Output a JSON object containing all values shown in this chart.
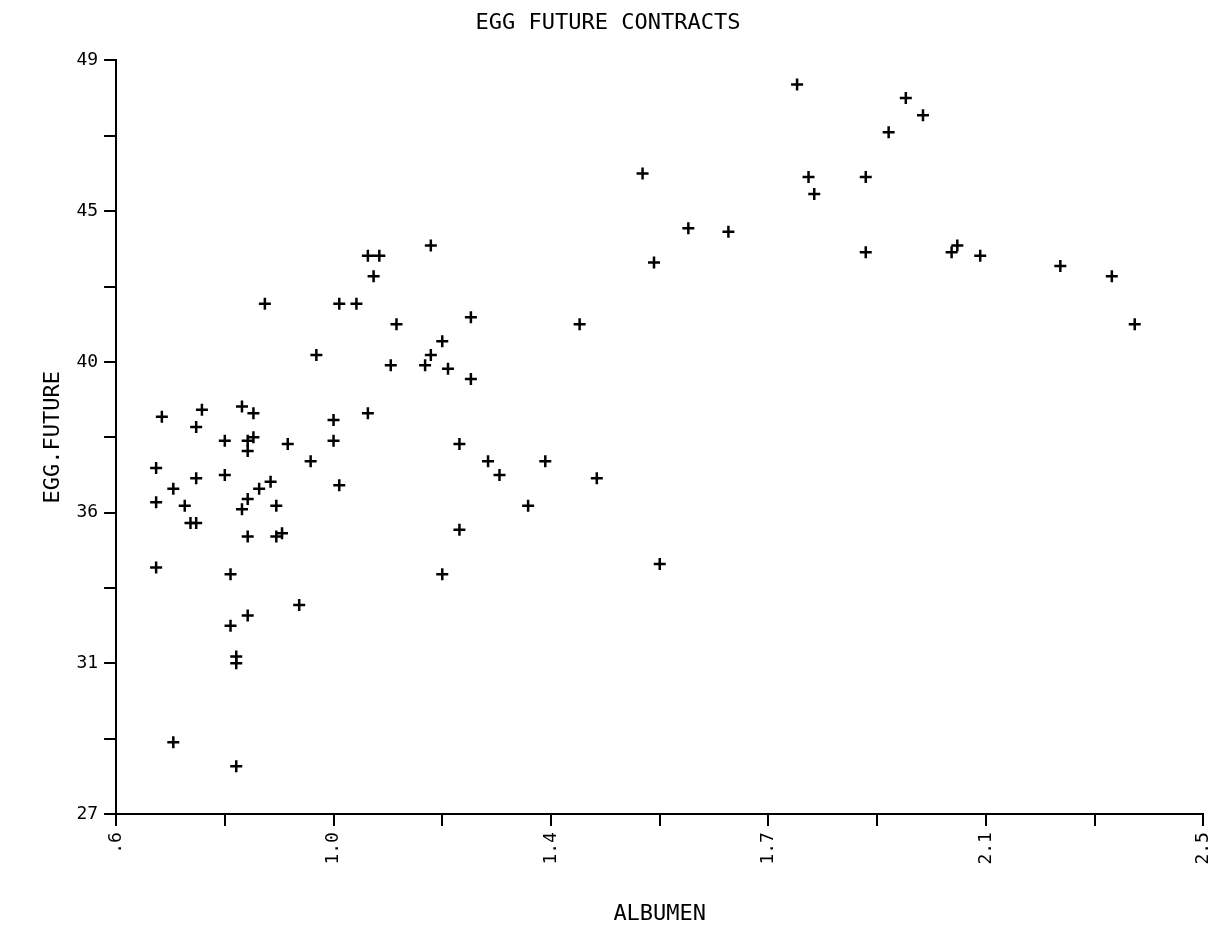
{
  "chart_data": {
    "type": "scatter",
    "title": "EGG FUTURE CONTRACTS",
    "xlabel": "ALBUMEN",
    "ylabel": "EGG.FUTURE",
    "marker": "cross",
    "grid": false,
    "legend": false,
    "xlim": [
      0.6,
      2.5
    ],
    "xticks": [
      {
        "value": 0.6,
        "label": ".6"
      },
      {
        "value": 0.79,
        "label": null
      },
      {
        "value": 0.98,
        "label": "1.0"
      },
      {
        "value": 1.17,
        "label": null
      },
      {
        "value": 1.36,
        "label": "1.4"
      },
      {
        "value": 1.55,
        "label": null
      },
      {
        "value": 1.74,
        "label": "1.7"
      },
      {
        "value": 1.93,
        "label": null
      },
      {
        "value": 2.12,
        "label": "2.1"
      },
      {
        "value": 2.31,
        "label": null
      },
      {
        "value": 2.5,
        "label": "2.5"
      }
    ],
    "ylim": [
      27,
      49
    ],
    "yticks": [
      27,
      {
        "value": 29.2,
        "label": null
      },
      {
        "value": 31.4,
        "label": "31"
      },
      {
        "value": 33.6,
        "label": null
      },
      {
        "value": 35.8,
        "label": "36"
      },
      {
        "value": 38,
        "label": null
      },
      {
        "value": 40.2,
        "label": "40"
      },
      {
        "value": 42.4,
        "label": null
      },
      {
        "value": 44.6,
        "label": "45"
      },
      {
        "value": 46.8,
        "label": null
      },
      49
    ],
    "series": [
      {
        "color": "#000000",
        "x": [
          0.67,
          0.67,
          0.67,
          0.68,
          0.7,
          0.7,
          0.72,
          0.73,
          0.74,
          0.74,
          0.74,
          0.75,
          0.79,
          0.79,
          0.8,
          0.8,
          0.81,
          0.81,
          0.81,
          0.82,
          0.82,
          0.83,
          0.83,
          0.83,
          0.83,
          0.83,
          0.84,
          0.84,
          0.85,
          0.86,
          0.87,
          0.88,
          0.88,
          0.89,
          0.9,
          0.92,
          0.94,
          0.95,
          0.98,
          0.98,
          0.99,
          0.99,
          1.02,
          1.04,
          1.04,
          1.05,
          1.06,
          1.08,
          1.09,
          1.14,
          1.15,
          1.15,
          1.17,
          1.17,
          1.18,
          1.2,
          1.2,
          1.22,
          1.22,
          1.25,
          1.27,
          1.32,
          1.35,
          1.41,
          1.44,
          1.52,
          1.54,
          1.55,
          1.6,
          1.67,
          1.79,
          1.81,
          1.82,
          1.91,
          1.91,
          1.95,
          1.98,
          2.01,
          2.06,
          2.07,
          2.11,
          2.25,
          2.34,
          2.38
        ],
        "values": [
          34.2,
          37.1,
          36.1,
          38.6,
          29.1,
          36.5,
          36.0,
          35.5,
          35.5,
          36.8,
          38.3,
          38.8,
          37.9,
          36.9,
          34.0,
          32.5,
          31.6,
          31.4,
          28.4,
          38.9,
          35.9,
          32.8,
          37.9,
          37.6,
          36.2,
          35.1,
          38.0,
          38.7,
          36.5,
          41.9,
          36.7,
          36.0,
          35.1,
          35.2,
          37.8,
          33.1,
          37.3,
          40.4,
          38.5,
          37.9,
          36.6,
          41.9,
          41.9,
          43.3,
          38.7,
          42.7,
          43.3,
          40.1,
          41.3,
          40.1,
          43.6,
          40.4,
          34.0,
          40.8,
          40.0,
          37.8,
          35.3,
          41.5,
          39.7,
          37.3,
          36.9,
          36.0,
          37.3,
          41.3,
          36.8,
          45.7,
          43.1,
          34.3,
          44.1,
          44.0,
          48.3,
          45.6,
          45.1,
          45.6,
          43.4,
          46.9,
          47.9,
          47.4,
          43.4,
          43.6,
          43.3,
          43.0,
          42.7,
          41.3
        ]
      }
    ]
  }
}
